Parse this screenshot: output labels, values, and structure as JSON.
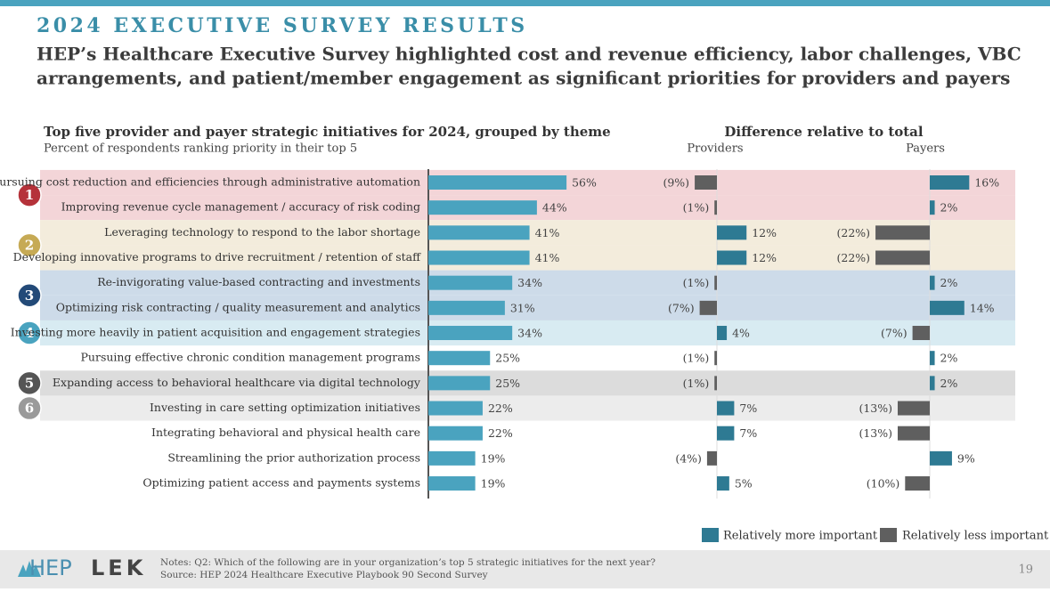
{
  "header": {
    "title": "2024 EXECUTIVE SURVEY RESULTS",
    "subtitle_lines": [
      "HEP’s Healthcare Executive Survey highlighted cost and revenue efficiency, labor challenges, VBC",
      "arrangements, and patient/member engagement as significant priorities for providers and payers"
    ]
  },
  "chart_data": {
    "type": "bar",
    "title": "Top five provider and payer strategic initiatives for 2024, grouped by theme",
    "subtitle": "Percent of respondents ranking priority in their top 5",
    "difference_title": "Difference relative to total",
    "xlim": [
      0,
      100
    ],
    "color": "#4aa3bf",
    "categories": [
      "Pursuing cost reduction and efficiencies through administrative automation",
      "Improving revenue cycle management / accuracy of risk coding",
      "Leveraging technology to respond to the labor shortage",
      "Developing innovative programs to drive recruitment / retention of staff",
      "Re-invigorating value-based contracting and investments",
      "Optimizing risk contracting / quality measurement and analytics",
      "Investing more heavily in patient acquisition and engagement strategies",
      "Pursuing effective chronic condition management programs",
      "Expanding access to behavioral healthcare via digital technology",
      "Investing in care setting optimization initiatives",
      "Integrating behavioral and physical health care",
      "Streamlining the prior authorization process",
      "Optimizing patient access and payments systems"
    ],
    "values": [
      56,
      44,
      41,
      41,
      34,
      31,
      34,
      25,
      25,
      22,
      22,
      19,
      19
    ],
    "value_labels": [
      "56%",
      "44%",
      "41%",
      "41%",
      "34%",
      "31%",
      "34%",
      "25%",
      "25%",
      "22%",
      "22%",
      "19%",
      "19%"
    ],
    "series": [
      {
        "name": "Providers",
        "values": [
          -9,
          -1,
          12,
          12,
          -1,
          -7,
          4,
          -1,
          -1,
          7,
          7,
          -4,
          5
        ],
        "value_labels": [
          "(9%)",
          "(1%)",
          "12%",
          "12%",
          "(1%)",
          "(7%)",
          "4%",
          "(1%)",
          "(1%)",
          "7%",
          "7%",
          "(4%)",
          "5%"
        ]
      },
      {
        "name": "Payers",
        "values": [
          16,
          2,
          -22,
          -22,
          2,
          14,
          -7,
          2,
          2,
          -13,
          -13,
          9,
          -10
        ],
        "value_labels": [
          "16%",
          "2%",
          "(22%)",
          "(22%)",
          "2%",
          "14%",
          "(7%)",
          "2%",
          "2%",
          "(13%)",
          "(13%)",
          "9%",
          "(10%)"
        ]
      }
    ],
    "legend": [
      {
        "label": "Relatively more important",
        "color": "#2e7a93"
      },
      {
        "label": "Relatively less important",
        "color": "#5f5f5f"
      }
    ],
    "themes": [
      {
        "label": "1",
        "color": "#b5323a",
        "band": "#f3d5d8"
      },
      {
        "label": "2",
        "color": "#c6aa55",
        "band": "#f3ecdc"
      },
      {
        "label": "3",
        "color": "#234a78",
        "band": "#cddbe9"
      },
      {
        "label": "4",
        "color": "#4aa3bf",
        "band": "#d8ebf2"
      },
      {
        "label": "5",
        "color": "#555555",
        "band": "#dcdcdc"
      },
      {
        "label": "6",
        "color": "#9a9a9a",
        "band": "#ececec"
      }
    ],
    "category_theme": [
      "1",
      "1",
      "2",
      "2",
      "3",
      "3",
      "4",
      null,
      "5",
      "6",
      null,
      null,
      null
    ]
  },
  "footer": {
    "logos": [
      "HEP",
      "LEK"
    ],
    "notes": "Notes:  Q2: Which of the following are in your organization’s top 5 strategic initiatives for the next year?",
    "source": "Source: HEP 2024 Healthcare Executive Playbook 90 Second Survey",
    "page": "19"
  }
}
